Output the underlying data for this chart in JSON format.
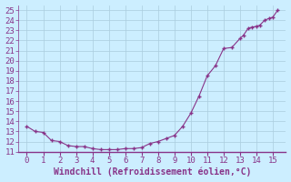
{
  "x": [
    0,
    0.5,
    1,
    1.5,
    2,
    2.5,
    3,
    3.5,
    4,
    4.5,
    5,
    5.5,
    6,
    6.5,
    7,
    7.5,
    8,
    8.5,
    9,
    9.5,
    10,
    10.5,
    11,
    11.5,
    12,
    12.5,
    13,
    13.2,
    13.5,
    13.7,
    14,
    14.2,
    14.5,
    14.8,
    15,
    15.3
  ],
  "y": [
    13.5,
    13.0,
    12.9,
    12.1,
    12.0,
    11.6,
    11.5,
    11.5,
    11.3,
    11.2,
    11.2,
    11.2,
    11.3,
    11.3,
    11.4,
    11.8,
    12.0,
    12.3,
    12.6,
    13.5,
    14.8,
    16.5,
    18.5,
    19.5,
    21.2,
    21.3,
    22.2,
    22.5,
    23.2,
    23.3,
    23.4,
    23.5,
    24.0,
    24.2,
    24.3,
    25.0
  ],
  "line_color": "#883388",
  "marker_color": "#883388",
  "bg_color": "#cceeff",
  "grid_color": "#aaccdd",
  "xlabel": "Windchill (Refroidissement éolien,°C)",
  "xlim": [
    -0.5,
    15.8
  ],
  "ylim": [
    11,
    25.5
  ],
  "xticks": [
    0,
    1,
    2,
    3,
    4,
    5,
    6,
    7,
    8,
    9,
    10,
    11,
    12,
    13,
    14,
    15
  ],
  "yticks": [
    11,
    12,
    13,
    14,
    15,
    16,
    17,
    18,
    19,
    20,
    21,
    22,
    23,
    24,
    25
  ],
  "tick_color": "#883388",
  "xlabel_color": "#883388",
  "tick_fontsize": 6.5,
  "xlabel_fontsize": 7
}
